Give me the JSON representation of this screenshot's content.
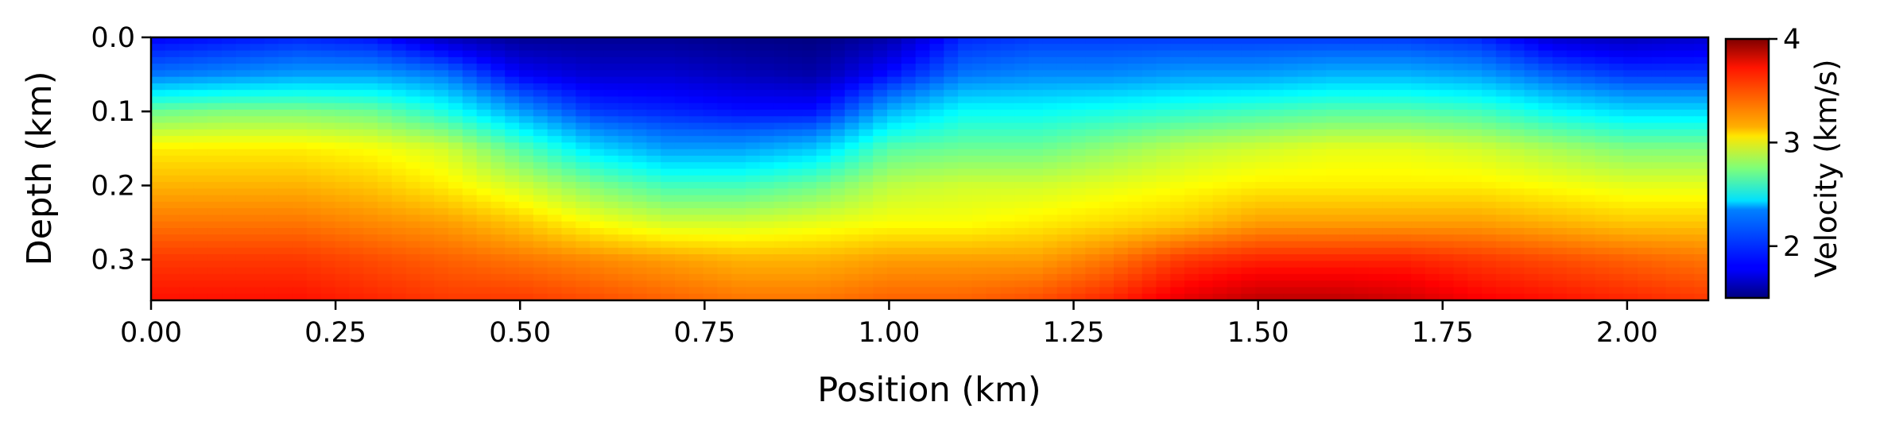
{
  "chart_data": {
    "type": "heatmap",
    "title": "",
    "xlabel": "Position (km)",
    "ylabel": "Depth (km)",
    "xlim": [
      0.0,
      2.11
    ],
    "ylim": [
      0.355,
      0.0
    ],
    "x_ticks": [
      "0.00",
      "0.25",
      "0.50",
      "0.75",
      "1.00",
      "1.25",
      "1.50",
      "1.75",
      "2.00"
    ],
    "y_ticks": [
      "0.0",
      "0.1",
      "0.2",
      "0.3"
    ],
    "colorbar": {
      "label": "Velocity (km/s)",
      "colormap": "jet",
      "range": [
        1.5,
        4.0
      ],
      "ticks": [
        "2",
        "3",
        "4"
      ]
    },
    "velocity_field": {
      "description_units": "km/s",
      "x_positions_km": [
        0.0,
        0.1,
        0.2,
        0.3,
        0.4,
        0.5,
        0.6,
        0.7,
        0.8,
        0.9,
        1.0,
        1.1,
        1.2,
        1.3,
        1.4,
        1.5,
        1.6,
        1.7,
        1.8,
        1.9,
        2.0,
        2.11
      ],
      "depths_km": [
        0.0,
        0.05,
        0.1,
        0.15,
        0.2,
        0.25,
        0.3,
        0.355
      ],
      "values": [
        [
          1.8,
          1.85,
          1.9,
          1.85,
          1.65,
          1.55,
          1.55,
          1.55,
          1.52,
          1.5,
          1.6,
          1.9,
          1.95,
          1.95,
          1.95,
          1.95,
          1.95,
          1.95,
          1.9,
          1.7,
          1.65,
          1.7
        ],
        [
          2.1,
          2.15,
          2.2,
          2.2,
          2.1,
          1.8,
          1.7,
          1.7,
          1.65,
          1.6,
          1.85,
          2.1,
          2.15,
          2.15,
          2.2,
          2.2,
          2.25,
          2.25,
          2.2,
          2.05,
          1.95,
          1.95
        ],
        [
          2.7,
          2.75,
          2.75,
          2.7,
          2.5,
          2.2,
          1.95,
          1.9,
          1.85,
          1.85,
          2.25,
          2.45,
          2.45,
          2.5,
          2.55,
          2.6,
          2.65,
          2.65,
          2.6,
          2.45,
          2.35,
          2.35
        ],
        [
          3.1,
          3.1,
          3.1,
          3.05,
          2.95,
          2.65,
          2.35,
          2.2,
          2.2,
          2.3,
          2.65,
          2.7,
          2.7,
          2.8,
          2.9,
          2.95,
          3.0,
          3.0,
          2.95,
          2.85,
          2.75,
          2.75
        ],
        [
          3.25,
          3.25,
          3.25,
          3.2,
          3.1,
          2.95,
          2.75,
          2.6,
          2.6,
          2.7,
          2.9,
          2.95,
          2.95,
          3.0,
          3.05,
          3.1,
          3.1,
          3.1,
          3.1,
          3.05,
          3.0,
          3.0
        ],
        [
          3.4,
          3.4,
          3.4,
          3.35,
          3.3,
          3.2,
          3.05,
          2.95,
          2.95,
          3.0,
          3.05,
          3.05,
          3.1,
          3.15,
          3.2,
          3.3,
          3.3,
          3.3,
          3.3,
          3.25,
          3.2,
          3.2
        ],
        [
          3.55,
          3.55,
          3.55,
          3.5,
          3.45,
          3.4,
          3.35,
          3.3,
          3.25,
          3.25,
          3.3,
          3.3,
          3.3,
          3.4,
          3.55,
          3.6,
          3.6,
          3.6,
          3.55,
          3.5,
          3.45,
          3.4
        ],
        [
          3.65,
          3.65,
          3.65,
          3.6,
          3.55,
          3.55,
          3.5,
          3.45,
          3.4,
          3.4,
          3.45,
          3.45,
          3.5,
          3.6,
          3.75,
          3.85,
          3.85,
          3.8,
          3.7,
          3.65,
          3.6,
          3.55
        ]
      ]
    }
  }
}
